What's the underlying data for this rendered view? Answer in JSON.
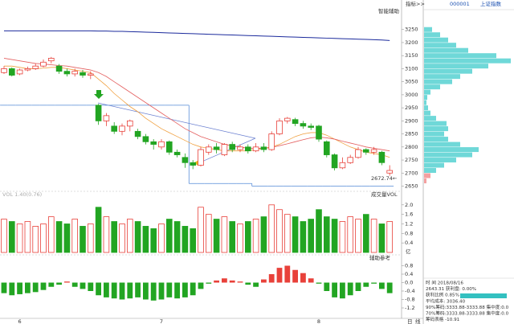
{
  "chart_data": {
    "type": "candlestick",
    "code": "000001",
    "name": "上证指数",
    "indicator_button": "指标>>",
    "assist_label": "智能辅助",
    "annotation": "2672.74←",
    "categories": [
      null,
      null,
      "6",
      null,
      null,
      null,
      null,
      null,
      null,
      null,
      null,
      null,
      null,
      null,
      null,
      null,
      null,
      null,
      null,
      null,
      "7",
      null,
      null,
      null,
      null,
      null,
      null,
      null,
      null,
      null,
      null,
      null,
      null,
      null,
      null,
      null,
      null,
      null,
      null,
      null,
      "8",
      null,
      null,
      null,
      null,
      null,
      null,
      null,
      null,
      null
    ],
    "open": [
      3085,
      3100,
      3080,
      3095,
      3100,
      3110,
      3130,
      3110,
      3090,
      3080,
      3085,
      3075,
      2960,
      2900,
      2880,
      2860,
      2880,
      2860,
      2840,
      2820,
      2800,
      2820,
      2780,
      2760,
      2740,
      2730,
      2780,
      2800,
      2770,
      2810,
      2790,
      2800,
      2785,
      2800,
      2790,
      2850,
      2900,
      2905,
      2890,
      2880,
      2880,
      2820,
      2770,
      2720,
      2740,
      2760,
      2790,
      2780,
      2780,
      2700
    ],
    "high": [
      3110,
      3105,
      3100,
      3108,
      3120,
      3135,
      3145,
      3118,
      3100,
      3100,
      3095,
      3090,
      2965,
      2930,
      2895,
      2890,
      2905,
      2870,
      2850,
      2830,
      2830,
      2825,
      2790,
      2775,
      2750,
      2800,
      2810,
      2815,
      2815,
      2820,
      2810,
      2810,
      2815,
      2815,
      2860,
      2910,
      2915,
      2912,
      2900,
      2890,
      2885,
      2825,
      2775,
      2760,
      2770,
      2800,
      2795,
      2800,
      2785,
      2730
    ],
    "low": [
      3080,
      3070,
      3075,
      3090,
      3095,
      3105,
      3120,
      3080,
      3070,
      3070,
      3065,
      3060,
      2885,
      2880,
      2850,
      2845,
      2860,
      2830,
      2810,
      2790,
      2790,
      2770,
      2760,
      2720,
      2715,
      2725,
      2770,
      2775,
      2765,
      2780,
      2780,
      2775,
      2780,
      2780,
      2785,
      2845,
      2890,
      2880,
      2870,
      2865,
      2820,
      2760,
      2710,
      2715,
      2735,
      2755,
      2770,
      2770,
      2730,
      2690
    ],
    "close": [
      3100,
      3075,
      3095,
      3100,
      3110,
      3125,
      3140,
      3090,
      3080,
      3090,
      3075,
      3080,
      2900,
      2920,
      2860,
      2880,
      2900,
      2840,
      2820,
      2810,
      2820,
      2780,
      2770,
      2740,
      2730,
      2790,
      2800,
      2790,
      2810,
      2790,
      2800,
      2785,
      2800,
      2790,
      2850,
      2900,
      2910,
      2890,
      2880,
      2875,
      2830,
      2770,
      2720,
      2740,
      2760,
      2790,
      2780,
      2790,
      2740,
      2710
    ],
    "series": [
      {
        "name": "MA1",
        "color": "#f0a040",
        "values": [
          3110,
          3110,
          3105,
          3100,
          3100,
          3102,
          3105,
          3105,
          3100,
          3095,
          3090,
          3085,
          3060,
          3035,
          3005,
          2980,
          2955,
          2935,
          2910,
          2890,
          2870,
          2855,
          2840,
          2825,
          2810,
          2800,
          2795,
          2790,
          2785,
          2785,
          2785,
          2785,
          2790,
          2795,
          2800,
          2810,
          2825,
          2840,
          2850,
          2855,
          2855,
          2845,
          2830,
          2815,
          2800,
          2790,
          2780,
          2775,
          2770,
          2760
        ]
      },
      {
        "name": "MA2",
        "color": "#e46060",
        "values": [
          3140,
          3135,
          3130,
          3125,
          3120,
          3118,
          3115,
          3112,
          3110,
          3105,
          3100,
          3095,
          3085,
          3070,
          3050,
          3030,
          3010,
          2990,
          2970,
          2950,
          2930,
          2910,
          2890,
          2870,
          2855,
          2840,
          2830,
          2820,
          2810,
          2805,
          2800,
          2795,
          2795,
          2795,
          2798,
          2805,
          2812,
          2820,
          2828,
          2835,
          2838,
          2835,
          2830,
          2822,
          2815,
          2808,
          2800,
          2795,
          2790,
          2785
        ]
      },
      {
        "name": "MA3",
        "color": "#1b2a9c",
        "values": [
          3245,
          3245,
          3245,
          3245,
          3245,
          3245,
          3245,
          3245,
          3245,
          3245,
          3245,
          3245,
          3244,
          3244,
          3243,
          3243,
          3242,
          3241,
          3240,
          3239,
          3238,
          3237,
          3236,
          3235,
          3234,
          3233,
          3232,
          3231,
          3230,
          3229,
          3228,
          3227,
          3226,
          3225,
          3224,
          3223,
          3222,
          3221,
          3220,
          3219,
          3218,
          3217,
          3216,
          3215,
          3214,
          3213,
          3212,
          3211,
          3210,
          3208
        ]
      }
    ],
    "stop_line": {
      "color": "#5b8fd8",
      "values": [
        2960,
        2960,
        2960,
        2960,
        2960,
        2960,
        2960,
        2960,
        2960,
        2960,
        2960,
        2960,
        2960,
        2960,
        2960,
        2960,
        2960,
        2960,
        2960,
        2960,
        2960,
        2960,
        2960,
        2960,
        2660,
        2660,
        2660,
        2660,
        2660,
        2660,
        2660,
        2660,
        2650,
        2650,
        2650,
        2650,
        2650,
        2650,
        2650,
        2650,
        2650,
        2650,
        2650,
        2650,
        2650,
        2650,
        2650,
        2650,
        2650,
        2650
      ]
    },
    "up_color": "#e8413a",
    "down_color": "#22a522",
    "ylim": [
      2630,
      3320
    ],
    "yticks": [
      2650,
      2700,
      2750,
      2800,
      2850,
      2900,
      2950,
      3000,
      3050,
      3100,
      3150,
      3200,
      3250
    ],
    "volume": {
      "label": "成交量VOL",
      "info": "VOL 1.40(0.76)",
      "unit": "亿",
      "values": [
        1.4,
        1.3,
        1.2,
        1.3,
        1.1,
        1.2,
        1.5,
        1.3,
        1.2,
        1.4,
        1.1,
        1.2,
        1.9,
        1.5,
        1.3,
        1.2,
        1.4,
        1.3,
        1.1,
        1.0,
        1.2,
        1.4,
        1.3,
        1.1,
        1.0,
        1.9,
        1.6,
        1.4,
        1.5,
        1.3,
        1.2,
        1.3,
        1.4,
        1.5,
        2.0,
        1.8,
        1.6,
        1.5,
        1.3,
        1.4,
        1.8,
        1.5,
        1.4,
        1.3,
        1.5,
        1.4,
        1.6,
        1.4,
        1.2,
        1.3
      ],
      "ylim": [
        0,
        2.5
      ],
      "yticks": [
        {
          "value": 0.4,
          "label": "0.4"
        },
        {
          "value": 0.8,
          "label": "0.8"
        },
        {
          "value": 1.2,
          "label": "1.2"
        },
        {
          "value": 1.6,
          "label": "1.6"
        },
        {
          "value": 2,
          "label": "2.0"
        }
      ]
    },
    "assist": {
      "label": "辅助参考",
      "values": [
        -0.5,
        -0.6,
        -0.55,
        -0.5,
        -0.45,
        -0.35,
        -0.2,
        -0.1,
        0.05,
        -0.2,
        -0.3,
        -0.4,
        -0.6,
        -0.7,
        -0.75,
        -0.8,
        -0.75,
        -0.7,
        -0.8,
        -0.85,
        -0.8,
        -0.7,
        -0.75,
        -0.7,
        -0.6,
        -0.3,
        -0.05,
        0.1,
        0.2,
        0.1,
        0.05,
        -0.1,
        -0.2,
        0.15,
        0.4,
        0.7,
        0.8,
        0.6,
        0.45,
        0.2,
        -0.05,
        -0.4,
        -0.7,
        -0.75,
        -0.6,
        -0.4,
        -0.2,
        -0.05,
        -0.3,
        -0.5
      ],
      "ylim": [
        -1.6,
        1.2
      ],
      "yticks": [
        {
          "value": 0.8,
          "label": "0.8"
        },
        {
          "value": 0.4,
          "label": "0.4"
        },
        {
          "value": 0,
          "label": "0.0"
        },
        {
          "value": -0.4,
          "label": "-0.4"
        },
        {
          "value": -0.8,
          "label": "-0.8"
        },
        {
          "value": -1.2,
          "label": "-1.2"
        }
      ]
    },
    "chips": {
      "color": "#6fd8d8",
      "profit_color": "#f4a0a0",
      "prices": [
        2650,
        2670,
        2690,
        2710,
        2730,
        2750,
        2770,
        2790,
        2810,
        2830,
        2850,
        2870,
        2890,
        2910,
        2930,
        2950,
        2970,
        2990,
        3010,
        3030,
        3050,
        3070,
        3090,
        3110,
        3130,
        3150,
        3170,
        3190,
        3210,
        3230,
        3250
      ],
      "values": [
        0,
        3,
        8,
        15,
        25,
        40,
        60,
        68,
        45,
        30,
        25,
        30,
        28,
        15,
        8,
        5,
        3,
        4,
        8,
        20,
        35,
        45,
        60,
        80,
        108,
        90,
        55,
        40,
        30,
        20,
        10
      ],
      "xlim": [
        0,
        110
      ]
    },
    "info": [
      "时 间 2018/08/16",
      "2643.31 获利盘: 0.00%",
      "获利比例 0.85%",
      "平均成本: 3036.40",
      "90%筹码:3333.88-3333.88 集中度:0.0",
      "70%筹码:3333.88-3333.88 集中度:0.0",
      "筹码表格 -10.91"
    ],
    "period_buttons": [
      "日",
      "线"
    ]
  }
}
